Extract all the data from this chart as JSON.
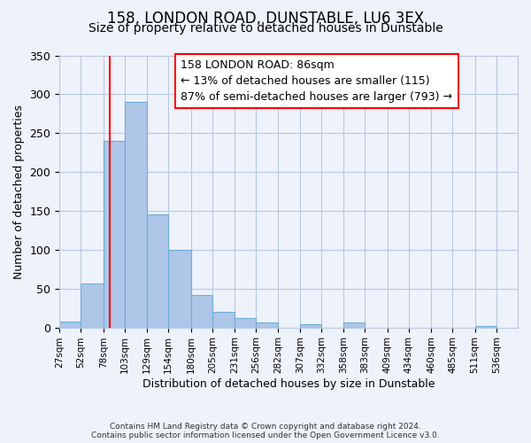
{
  "title": "158, LONDON ROAD, DUNSTABLE, LU6 3EX",
  "subtitle": "Size of property relative to detached houses in Dunstable",
  "xlabel": "Distribution of detached houses by size in Dunstable",
  "ylabel": "Number of detached properties",
  "bin_edges": [
    27,
    52,
    78,
    103,
    129,
    154,
    180,
    205,
    231,
    256,
    282,
    307,
    332,
    358,
    383,
    409,
    434,
    460,
    485,
    511,
    536
  ],
  "bar_heights": [
    8,
    57,
    240,
    290,
    145,
    100,
    42,
    20,
    12,
    6,
    0,
    4,
    0,
    6,
    0,
    0,
    0,
    0,
    0,
    2
  ],
  "bar_color": "#aec6e8",
  "bar_edge_color": "#6baed6",
  "vline_x": 86,
  "vline_color": "red",
  "annotation_line1": "158 LONDON ROAD: 86sqm",
  "annotation_line2": "← 13% of detached houses are smaller (115)",
  "annotation_line3": "87% of semi-detached houses are larger (793) →",
  "ylim": [
    0,
    350
  ],
  "yticks": [
    0,
    50,
    100,
    150,
    200,
    250,
    300,
    350
  ],
  "tick_labels": [
    "27sqm",
    "52sqm",
    "78sqm",
    "103sqm",
    "129sqm",
    "154sqm",
    "180sqm",
    "205sqm",
    "231sqm",
    "256sqm",
    "282sqm",
    "307sqm",
    "332sqm",
    "358sqm",
    "383sqm",
    "409sqm",
    "434sqm",
    "460sqm",
    "485sqm",
    "511sqm",
    "536sqm"
  ],
  "footer_line1": "Contains HM Land Registry data © Crown copyright and database right 2024.",
  "footer_line2": "Contains public sector information licensed under the Open Government Licence v3.0.",
  "background_color": "#eef2fb",
  "grid_color": "#b8c8e0",
  "title_fontsize": 12,
  "subtitle_fontsize": 10,
  "ylabel_fontsize": 9,
  "xlabel_fontsize": 9,
  "annot_fontsize": 9,
  "tick_fontsize": 7.5,
  "ytick_fontsize": 9
}
